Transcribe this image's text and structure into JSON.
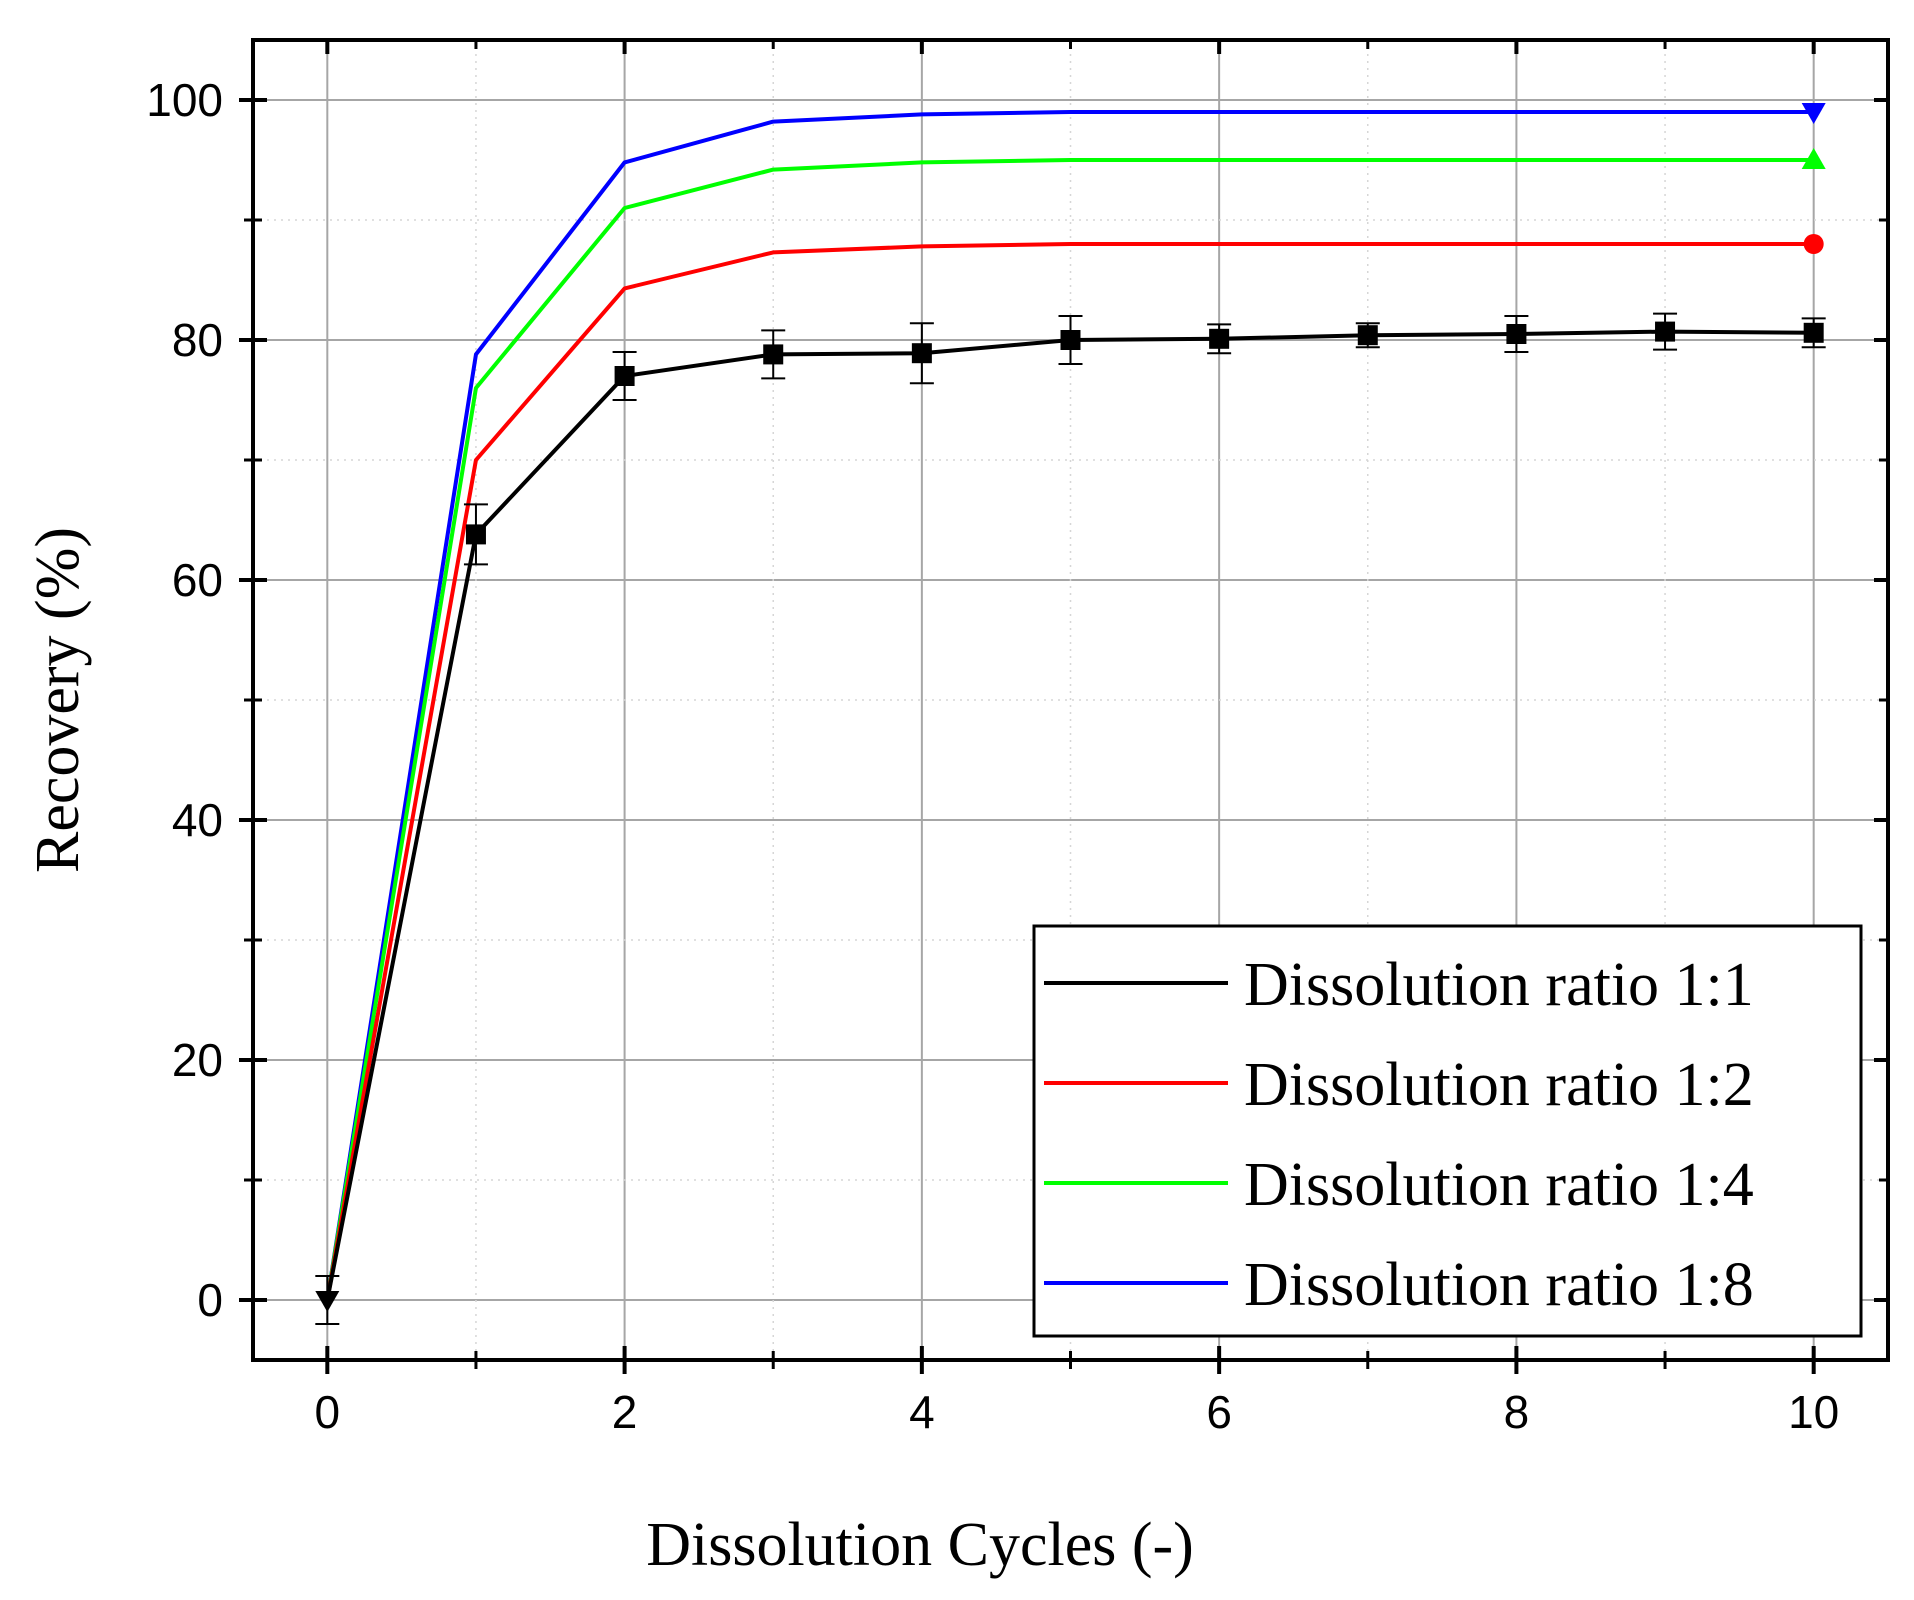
{
  "chart_data": {
    "type": "line",
    "title": "",
    "xlabel": "Dissolution Cycles (-)",
    "ylabel": "Recovery (%)",
    "xlim": [
      -0.5,
      10.5
    ],
    "ylim": [
      -5,
      105
    ],
    "xticks": [
      0,
      2,
      4,
      6,
      8,
      10
    ],
    "xtick_labels": [
      "0",
      "2",
      "4",
      "6",
      "8",
      "10"
    ],
    "yticks": [
      0,
      20,
      40,
      60,
      80,
      100
    ],
    "ytick_labels": [
      "0",
      "20",
      "40",
      "60",
      "80",
      "100"
    ],
    "x_minor_ticks": [
      1,
      3,
      5,
      7,
      9
    ],
    "y_minor_ticks": [
      10,
      30,
      50,
      70,
      90
    ],
    "grid": true,
    "legend_position": "bottom-right",
    "series": [
      {
        "name": "Dissolution ratio 1:1",
        "color": "#000000",
        "marker": "square",
        "x": [
          0,
          1,
          2,
          3,
          4,
          5,
          6,
          7,
          8,
          9,
          10
        ],
        "values": [
          0,
          63.8,
          77.0,
          78.8,
          78.9,
          80.0,
          80.1,
          80.4,
          80.5,
          80.7,
          80.6
        ],
        "error": [
          2.0,
          2.5,
          2.0,
          2.0,
          2.5,
          2.0,
          1.2,
          1.0,
          1.5,
          1.5,
          1.2
        ]
      },
      {
        "name": "Dissolution ratio 1:2",
        "color": "#ff0000",
        "marker": "circle",
        "x": [
          0,
          1,
          2,
          3,
          4,
          5,
          6,
          7,
          8,
          9,
          10
        ],
        "values": [
          0,
          70.0,
          84.3,
          87.3,
          87.8,
          88.0,
          88.0,
          88.0,
          88.0,
          88.0,
          88.0
        ]
      },
      {
        "name": "Dissolution ratio 1:4",
        "color": "#00ff00",
        "marker": "triangle-up",
        "x": [
          0,
          1,
          2,
          3,
          4,
          5,
          6,
          7,
          8,
          9,
          10
        ],
        "values": [
          0,
          76.0,
          91.0,
          94.2,
          94.8,
          95.0,
          95.0,
          95.0,
          95.0,
          95.0,
          95.0
        ]
      },
      {
        "name": "Dissolution ratio 1:8",
        "color": "#0000ff",
        "marker": "triangle-down",
        "x": [
          0,
          1,
          2,
          3,
          4,
          5,
          6,
          7,
          8,
          9,
          10
        ],
        "values": [
          0,
          78.8,
          94.8,
          98.2,
          98.8,
          99.0,
          99.0,
          99.0,
          99.0,
          99.0,
          99.0
        ]
      }
    ]
  }
}
